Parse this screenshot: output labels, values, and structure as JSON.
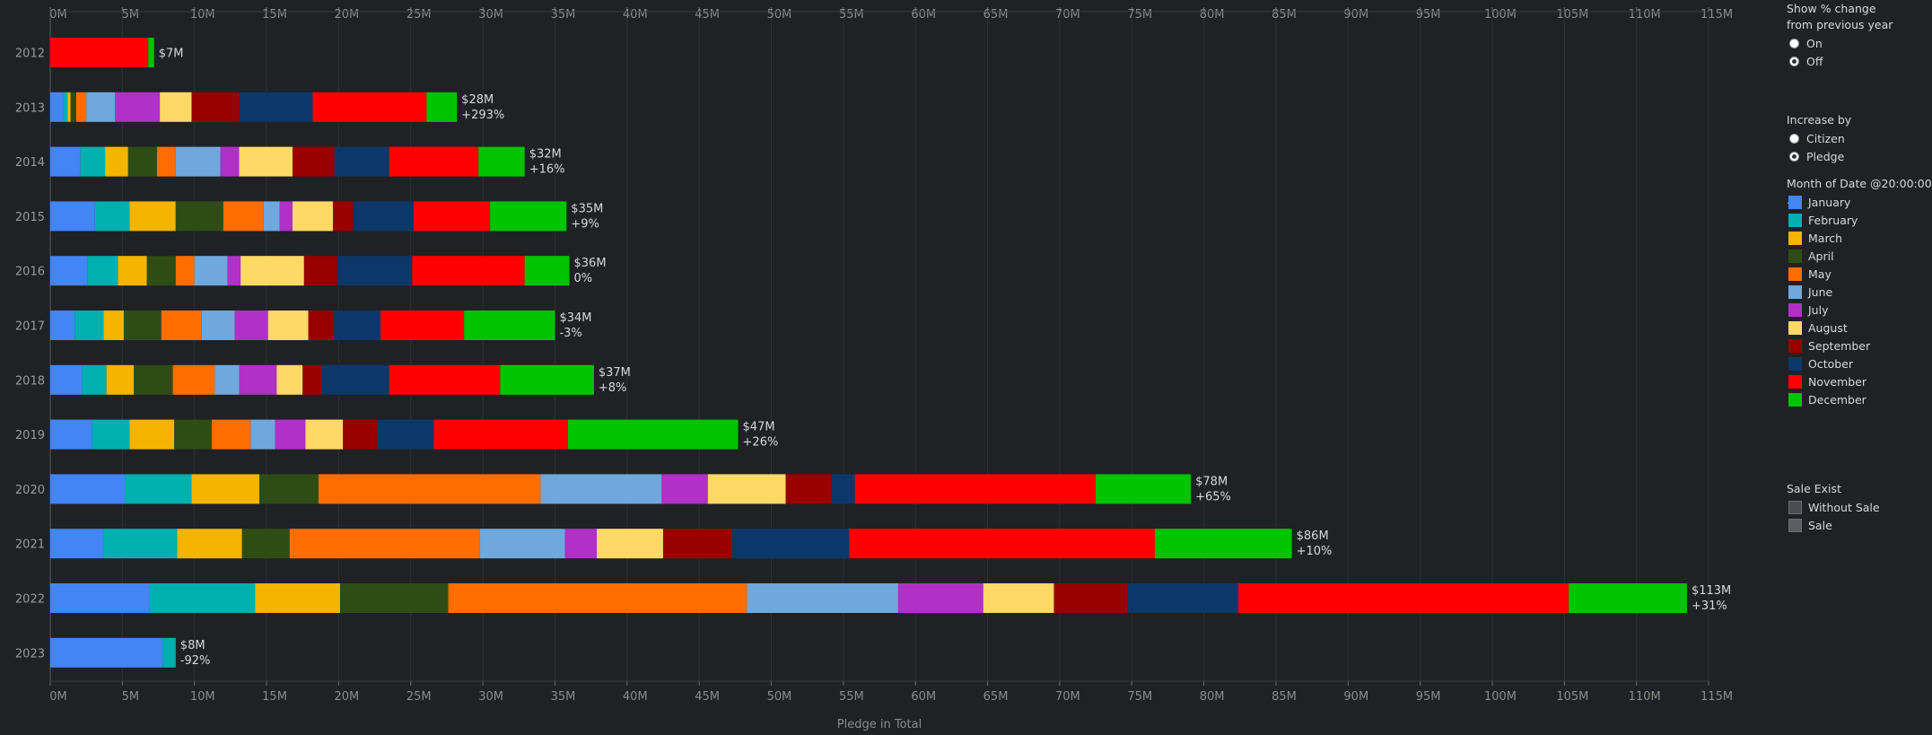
{
  "chart_data": {
    "type": "bar",
    "orientation": "horizontal",
    "stacked": true,
    "xlabel": "Pledge in Total",
    "ylabel": "",
    "xlim": [
      0,
      115
    ],
    "x_unit": "M",
    "x_ticks": [
      "0M",
      "5M",
      "10M",
      "15M",
      "20M",
      "25M",
      "30M",
      "35M",
      "40M",
      "45M",
      "50M",
      "55M",
      "60M",
      "65M",
      "70M",
      "75M",
      "80M",
      "85M",
      "90M",
      "95M",
      "100M",
      "105M",
      "110M",
      "115M"
    ],
    "categories": [
      "2012",
      "2013",
      "2014",
      "2015",
      "2016",
      "2017",
      "2018",
      "2019",
      "2020",
      "2021",
      "2022",
      "2023"
    ],
    "series": [
      {
        "name": "January",
        "color": "#4285f4",
        "values": [
          0,
          0.9,
          2.1,
          3.1,
          2.6,
          1.7,
          2.2,
          2.9,
          5.2,
          3.7,
          6.9,
          7.8
        ]
      },
      {
        "name": "February",
        "color": "#00b0b0",
        "values": [
          0,
          0.3,
          1.7,
          2.4,
          2.1,
          2.0,
          1.7,
          2.6,
          4.6,
          5.1,
          7.3,
          0.9
        ]
      },
      {
        "name": "March",
        "color": "#f4b400",
        "values": [
          0,
          0.2,
          1.6,
          3.2,
          2.0,
          1.4,
          1.9,
          3.1,
          4.7,
          4.5,
          5.9,
          0
        ]
      },
      {
        "name": "April",
        "color": "#2d4d14",
        "values": [
          0,
          0.4,
          2.0,
          3.3,
          2.0,
          2.6,
          2.7,
          2.6,
          4.1,
          3.3,
          7.5,
          0
        ]
      },
      {
        "name": "May",
        "color": "#ff6d00",
        "values": [
          0,
          0.7,
          1.3,
          2.8,
          1.3,
          2.8,
          2.9,
          2.7,
          15.4,
          13.2,
          20.7,
          0
        ]
      },
      {
        "name": "June",
        "color": "#6fa8dc",
        "values": [
          0,
          2.0,
          3.1,
          1.1,
          2.3,
          2.3,
          1.7,
          1.7,
          8.4,
          5.9,
          10.5,
          0
        ]
      },
      {
        "name": "July",
        "color": "#b030c8",
        "values": [
          0,
          3.1,
          1.3,
          0.9,
          0.9,
          2.3,
          2.6,
          2.1,
          3.2,
          2.2,
          5.9,
          0
        ]
      },
      {
        "name": "August",
        "color": "#ffd966",
        "values": [
          0,
          2.2,
          3.7,
          2.8,
          4.4,
          2.8,
          1.8,
          2.6,
          5.4,
          4.6,
          4.9,
          0
        ]
      },
      {
        "name": "September",
        "color": "#990000",
        "values": [
          0,
          3.3,
          2.9,
          1.4,
          2.3,
          1.7,
          1.3,
          2.4,
          3.2,
          4.8,
          5.1,
          0
        ]
      },
      {
        "name": "October",
        "color": "#0b3868",
        "values": [
          0,
          5.1,
          3.8,
          4.2,
          5.2,
          3.3,
          4.7,
          3.9,
          1.6,
          8.1,
          7.7,
          0
        ]
      },
      {
        "name": "November",
        "color": "#ff0000",
        "values": [
          6.8,
          7.9,
          6.2,
          5.3,
          7.8,
          5.8,
          7.7,
          9.3,
          16.7,
          21.2,
          22.9,
          0
        ]
      },
      {
        "name": "December",
        "color": "#00c400",
        "values": [
          0.4,
          2.1,
          3.2,
          5.3,
          3.1,
          6.3,
          6.5,
          11.8,
          6.6,
          9.5,
          8.2,
          0
        ]
      }
    ],
    "bar_labels": [
      {
        "total": "$7M",
        "change": ""
      },
      {
        "total": "$28M",
        "change": "+293%"
      },
      {
        "total": "$32M",
        "change": "+16%"
      },
      {
        "total": "$35M",
        "change": "+9%"
      },
      {
        "total": "$36M",
        "change": "0%"
      },
      {
        "total": "$34M",
        "change": "-3%"
      },
      {
        "total": "$37M",
        "change": "+8%"
      },
      {
        "total": "$47M",
        "change": "+26%"
      },
      {
        "total": "$78M",
        "change": "+65%"
      },
      {
        "total": "$86M",
        "change": "+10%"
      },
      {
        "total": "$113M",
        "change": "+31%"
      },
      {
        "total": "$8M",
        "change": "-92%"
      }
    ],
    "grid": true,
    "legend_position": "right"
  },
  "controls": {
    "pct_change": {
      "title_line1": "Show % change",
      "title_line2": "from previous year",
      "options": [
        "On",
        "Off"
      ],
      "selected": "Off"
    },
    "increase_by": {
      "title": "Increase by",
      "options": [
        "Citizen",
        "Pledge"
      ],
      "selected": "Pledge"
    },
    "month_legend": {
      "title": "Month of Date @20:00:00 ..."
    },
    "sale_exist": {
      "title": "Sale Exist",
      "items": [
        {
          "label": "Without Sale",
          "color": "#4a4d52"
        },
        {
          "label": "Sale",
          "color": "#5b5e63"
        }
      ]
    }
  }
}
